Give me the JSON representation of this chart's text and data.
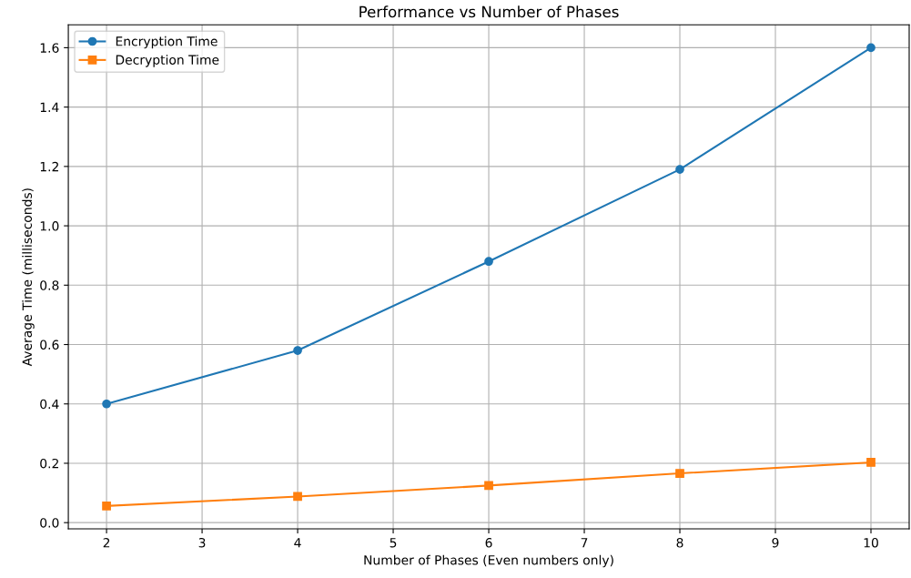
{
  "chart_data": {
    "type": "line",
    "title": "Performance vs Number of Phases",
    "xlabel": "Number of Phases (Even numbers only)",
    "ylabel": "Average Time (milliseconds)",
    "x": [
      2,
      4,
      6,
      8,
      10
    ],
    "series": [
      {
        "name": "Encryption Time",
        "color": "#1f77b4",
        "marker": "circle",
        "values": [
          0.4,
          0.58,
          0.88,
          1.19,
          1.6
        ]
      },
      {
        "name": "Decryption Time",
        "color": "#ff7f0e",
        "marker": "square",
        "values": [
          0.056,
          0.088,
          0.125,
          0.166,
          0.203
        ]
      }
    ],
    "xlim": [
      1.6,
      10.4
    ],
    "xticks": [
      2,
      3,
      4,
      5,
      6,
      7,
      8,
      9,
      10
    ],
    "ylim": [
      -0.021,
      1.677
    ],
    "yticks": [
      {
        "value": 0,
        "label": "0.0"
      },
      0.2,
      0.4,
      0.6,
      0.8,
      {
        "value": 1,
        "label": "1.0"
      },
      1.2,
      1.4,
      1.6
    ],
    "grid": true,
    "legend": "top left",
    "line_style": "solid"
  }
}
